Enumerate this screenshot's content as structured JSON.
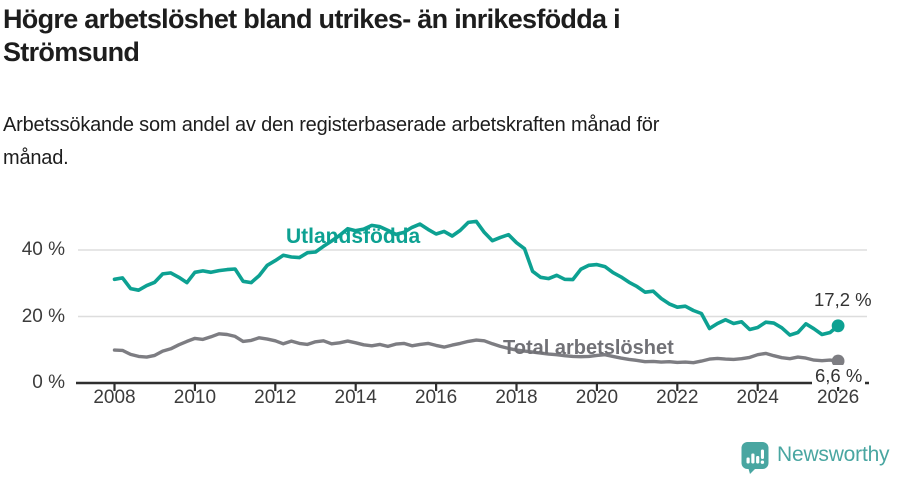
{
  "header": {
    "title_lines": [
      "Högre arbetslöshet bland utrikes- än inrikesfödda i",
      "Strömsund"
    ],
    "subtitle_lines": [
      "Arbetssökande som andel av den registerbaserade arbetskraften månad för",
      "månad."
    ]
  },
  "colors": {
    "foreign_born": "#0da192",
    "total": "#7d7d82",
    "total_label": "#717176",
    "axis": "#2f2f2f",
    "grid": "#dddddd",
    "tick_text": "#3c3c3c",
    "value_label_text": "#333333",
    "logo": "#49a6a1"
  },
  "chart_data": {
    "type": "line",
    "title": "Högre arbetslöshet bland utrikes- än inrikesfödda i Strömsund",
    "subtitle": "Arbetssökande som andel av den registerbaserade arbetskraften månad för månad.",
    "unit": "%",
    "grid": "horizontal",
    "legend_position": "inline-labels",
    "x_start": 2008.0,
    "x_step": 0.2,
    "xlim": [
      2007.0,
      2026.8
    ],
    "ylim": [
      0,
      53
    ],
    "x_ticks": [
      2008,
      2010,
      2012,
      2014,
      2016,
      2018,
      2020,
      2022,
      2024,
      2026
    ],
    "y_ticks": [
      {
        "value": 0,
        "label": "0 %"
      },
      {
        "value": 20,
        "label": "20 %"
      },
      {
        "value": 40,
        "label": "40 %"
      }
    ],
    "series": [
      {
        "id": "utlandsfodda",
        "name": "Utlandsfödda",
        "color": "#0da192",
        "end_label": "17,2 %",
        "last_value": 17.2,
        "values": [
          31.2,
          31.6,
          28.4,
          27.9,
          29.3,
          30.3,
          32.8,
          33.1,
          31.8,
          30.2,
          33.3,
          33.7,
          33.3,
          33.8,
          34.1,
          34.3,
          30.6,
          30.2,
          32.3,
          35.4,
          36.8,
          38.4,
          37.9,
          37.7,
          39.2,
          39.4,
          41.1,
          42.7,
          44.4,
          46.4,
          45.8,
          46.3,
          47.4,
          47.0,
          45.9,
          44.7,
          45.3,
          46.8,
          47.8,
          46.2,
          44.8,
          45.6,
          44.2,
          45.9,
          48.3,
          48.6,
          45.3,
          42.8,
          43.8,
          44.6,
          42.2,
          40.4,
          33.6,
          31.8,
          31.4,
          32.4,
          31.2,
          31.1,
          34.2,
          35.4,
          35.6,
          35.0,
          33.2,
          31.9,
          30.3,
          29.0,
          27.3,
          27.6,
          25.4,
          23.8,
          22.8,
          23.1,
          21.8,
          20.9,
          16.4,
          17.9,
          19.0,
          17.9,
          18.4,
          16.1,
          16.7,
          18.3,
          18.0,
          16.6,
          14.4,
          15.2,
          17.8,
          16.3,
          14.6,
          15.2,
          17.2
        ]
      },
      {
        "id": "total",
        "name": "Total arbetslöshet",
        "color": "#7d7d82",
        "end_label": "6,6 %",
        "last_value": 6.6,
        "values": [
          9.9,
          9.8,
          8.6,
          8.0,
          7.8,
          8.3,
          9.6,
          10.3,
          11.5,
          12.5,
          13.4,
          13.1,
          13.9,
          14.8,
          14.6,
          14.0,
          12.5,
          12.8,
          13.6,
          13.2,
          12.7,
          11.8,
          12.6,
          11.9,
          11.6,
          12.4,
          12.7,
          11.8,
          12.1,
          12.6,
          12.1,
          11.5,
          11.2,
          11.6,
          11.0,
          11.7,
          11.9,
          11.2,
          11.6,
          11.9,
          11.3,
          10.8,
          11.4,
          11.9,
          12.5,
          12.9,
          12.7,
          11.8,
          11.0,
          10.4,
          9.9,
          9.6,
          9.3,
          9.0,
          8.7,
          8.5,
          8.2,
          8.0,
          7.9,
          8.0,
          8.3,
          8.5,
          8.0,
          7.5,
          7.1,
          6.8,
          6.4,
          6.5,
          6.3,
          6.4,
          6.2,
          6.3,
          6.1,
          6.6,
          7.2,
          7.4,
          7.2,
          7.1,
          7.3,
          7.7,
          8.5,
          8.9,
          8.2,
          7.6,
          7.3,
          7.8,
          7.5,
          6.9,
          6.7,
          6.9,
          6.6
        ]
      }
    ]
  },
  "footer": {
    "brand": "Newsworthy"
  }
}
